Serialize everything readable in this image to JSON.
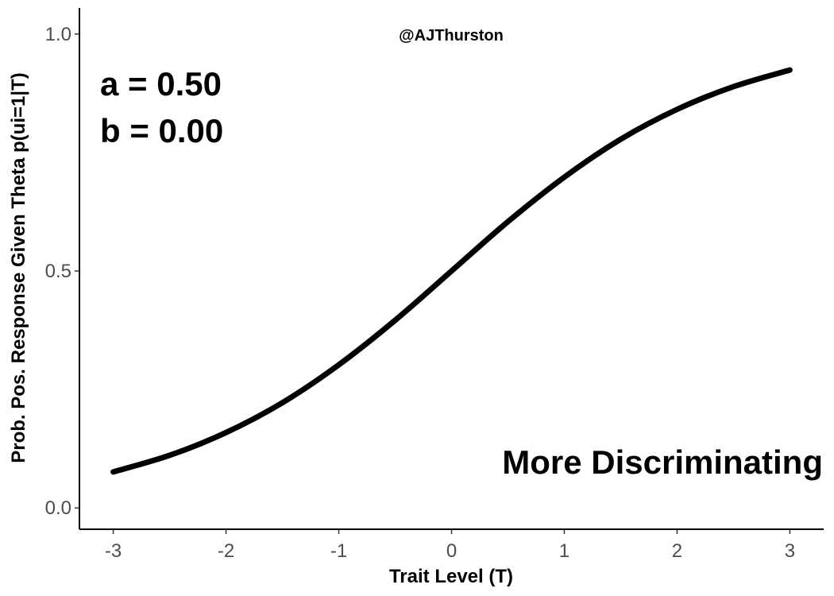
{
  "chart_data": {
    "type": "line",
    "title": "",
    "xlabel": "Trait Level (T)",
    "ylabel": "Prob. Pos. Response Given Theta p(ui=1|T)",
    "xlim": [
      -3.3,
      3.3
    ],
    "ylim": [
      -0.045,
      1.055
    ],
    "x_ticks": [
      -3,
      -2,
      -1,
      0,
      1,
      2,
      3
    ],
    "x_tick_labels": [
      "-3",
      "-2",
      "-1",
      "0",
      "1",
      "2",
      "3"
    ],
    "y_ticks": [
      0.0,
      0.5,
      1.0
    ],
    "y_tick_labels": [
      "0.0",
      "0.5",
      "1.0"
    ],
    "grid": false,
    "series": [
      {
        "color": "#000000",
        "x": [
          -3.0,
          -2.5,
          -2.0,
          -1.5,
          -1.0,
          -0.5,
          0.0,
          0.5,
          1.0,
          1.5,
          2.0,
          2.5,
          3.0
        ],
        "y": [
          0.076,
          0.111,
          0.159,
          0.222,
          0.302,
          0.396,
          0.5,
          0.604,
          0.698,
          0.778,
          0.841,
          0.889,
          0.924
        ]
      }
    ],
    "annotations": {
      "watermark": "@AJThurston",
      "param_a": "a = 0.50",
      "param_b": "b = 0.00",
      "note": "More Discriminating"
    }
  }
}
